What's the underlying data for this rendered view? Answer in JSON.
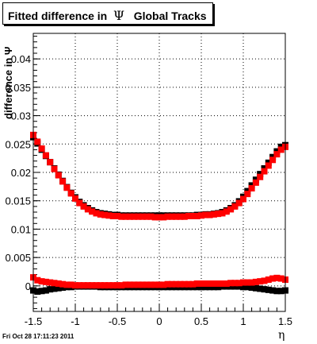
{
  "title": {
    "text_before": "Fitted difference in",
    "symbol": "Ψ",
    "text_after": "Global Tracks"
  },
  "footer": "Fri Oct 28 17:11:23 2011",
  "chart_data": {
    "type": "scatter",
    "title": "Fitted difference in Ψ Global Tracks",
    "xlabel": "η",
    "ylabel": "difference in Ψ",
    "xlim": [
      -1.5,
      1.5
    ],
    "ylim": [
      -0.0045,
      0.0445
    ],
    "x_ticks": [
      "-1.5",
      "-1",
      "-0.5",
      "0",
      "0.5",
      "1",
      "1.5"
    ],
    "y_ticks": [
      "0",
      "0.005",
      "0.01",
      "0.015",
      "0.02",
      "0.025",
      "0.03",
      "0.035",
      "0.04"
    ],
    "grid": true,
    "colors": {
      "series_black": "#000000",
      "series_red": "#ff0000",
      "grid": "#000000"
    },
    "series": [
      {
        "color": "#000000",
        "x": [
          -1.5,
          -1.45,
          -1.4,
          -1.35,
          -1.3,
          -1.25,
          -1.2,
          -1.15,
          -1.1,
          -1.05,
          -1.0,
          -0.95,
          -0.9,
          -0.85,
          -0.8,
          -0.75,
          -0.7,
          -0.65,
          -0.6,
          -0.55,
          -0.5,
          -0.45,
          -0.4,
          -0.35,
          -0.3,
          -0.25,
          -0.2,
          -0.15,
          -0.1,
          -0.05,
          0.0,
          0.05,
          0.1,
          0.15,
          0.2,
          0.25,
          0.3,
          0.35,
          0.4,
          0.45,
          0.5,
          0.55,
          0.6,
          0.65,
          0.7,
          0.75,
          0.8,
          0.85,
          0.9,
          0.95,
          1.0,
          1.05,
          1.1,
          1.15,
          1.2,
          1.25,
          1.3,
          1.35,
          1.4,
          1.45,
          1.5
        ],
        "y": [
          0.0262,
          0.0251,
          0.024,
          0.0229,
          0.0218,
          0.0207,
          0.0196,
          0.0185,
          0.0174,
          0.0164,
          0.0156,
          0.0148,
          0.0142,
          0.0137,
          0.0133,
          0.013,
          0.0128,
          0.0127,
          0.0126,
          0.0125,
          0.0125,
          0.0124,
          0.0124,
          0.0124,
          0.0124,
          0.0124,
          0.0124,
          0.0124,
          0.0124,
          0.0124,
          0.0124,
          0.0124,
          0.0124,
          0.0124,
          0.0124,
          0.0124,
          0.0124,
          0.0124,
          0.0124,
          0.0125,
          0.0125,
          0.0126,
          0.0126,
          0.0127,
          0.0128,
          0.013,
          0.0133,
          0.0137,
          0.0142,
          0.0149,
          0.0157,
          0.0167,
          0.0177,
          0.0187,
          0.0197,
          0.0207,
          0.0217,
          0.0227,
          0.0237,
          0.0245,
          0.0248
        ]
      },
      {
        "color": "#ff0000",
        "x": [
          -1.5,
          -1.45,
          -1.4,
          -1.35,
          -1.3,
          -1.25,
          -1.2,
          -1.15,
          -1.1,
          -1.05,
          -1.0,
          -0.95,
          -0.9,
          -0.85,
          -0.8,
          -0.75,
          -0.7,
          -0.65,
          -0.6,
          -0.55,
          -0.5,
          -0.45,
          -0.4,
          -0.35,
          -0.3,
          -0.25,
          -0.2,
          -0.15,
          -0.1,
          -0.05,
          0.0,
          0.05,
          0.1,
          0.15,
          0.2,
          0.25,
          0.3,
          0.35,
          0.4,
          0.45,
          0.5,
          0.55,
          0.6,
          0.65,
          0.7,
          0.75,
          0.8,
          0.85,
          0.9,
          0.95,
          1.0,
          1.05,
          1.1,
          1.15,
          1.2,
          1.25,
          1.3,
          1.35,
          1.4,
          1.45,
          1.5
        ],
        "y": [
          0.0266,
          0.0254,
          0.0242,
          0.023,
          0.0218,
          0.0206,
          0.0195,
          0.0184,
          0.0173,
          0.0163,
          0.0154,
          0.0146,
          0.014,
          0.0135,
          0.0131,
          0.0128,
          0.0126,
          0.0125,
          0.0124,
          0.0123,
          0.0123,
          0.0122,
          0.0122,
          0.0122,
          0.0122,
          0.0122,
          0.0122,
          0.0122,
          0.0122,
          0.0121,
          0.0121,
          0.0121,
          0.0122,
          0.0122,
          0.0122,
          0.0122,
          0.0122,
          0.0123,
          0.0123,
          0.0123,
          0.0124,
          0.0125,
          0.0125,
          0.0126,
          0.0127,
          0.0128,
          0.0131,
          0.0135,
          0.014,
          0.0146,
          0.0153,
          0.0162,
          0.0172,
          0.0182,
          0.0192,
          0.0202,
          0.0212,
          0.0222,
          0.0232,
          0.024,
          0.0245
        ]
      },
      {
        "color": "#000000",
        "x": [
          -1.5,
          -1.45,
          -1.4,
          -1.35,
          -1.3,
          -1.25,
          -1.2,
          -1.15,
          -1.1,
          -1.05,
          -1.0,
          -0.95,
          -0.9,
          -0.85,
          -0.8,
          -0.75,
          -0.7,
          -0.65,
          -0.6,
          -0.55,
          -0.5,
          -0.45,
          -0.4,
          -0.35,
          -0.3,
          -0.25,
          -0.2,
          -0.15,
          -0.1,
          -0.05,
          0.0,
          0.05,
          0.1,
          0.15,
          0.2,
          0.25,
          0.3,
          0.35,
          0.4,
          0.45,
          0.5,
          0.55,
          0.6,
          0.65,
          0.7,
          0.75,
          0.8,
          0.85,
          0.9,
          0.95,
          1.0,
          1.05,
          1.1,
          1.15,
          1.2,
          1.25,
          1.3,
          1.35,
          1.4,
          1.45,
          1.5
        ],
        "y": [
          -0.0008,
          -0.001,
          -0.0009,
          -0.0008,
          -0.0006,
          -0.0005,
          -0.0004,
          -0.0003,
          -0.0002,
          -0.0002,
          -0.0001,
          -0.0001,
          -0.0001,
          -0.0001,
          -0.0001,
          -0.0001,
          -0.0002,
          -0.0002,
          -0.0002,
          -0.0002,
          -0.0002,
          -0.0002,
          -0.0002,
          -0.0002,
          -0.0002,
          -0.0002,
          -0.0002,
          -0.0002,
          -0.0002,
          -0.0002,
          -0.0002,
          -0.0002,
          -0.0002,
          -0.0002,
          -0.0002,
          -0.0002,
          -0.0002,
          -0.0002,
          -0.0002,
          -0.0002,
          -0.0002,
          -0.0002,
          -0.0002,
          -0.0002,
          -0.0002,
          -0.0001,
          -0.0001,
          -0.0001,
          -0.0001,
          -0.0001,
          -0.0002,
          -0.0002,
          -0.0003,
          -0.0004,
          -0.0005,
          -0.0006,
          -0.0007,
          -0.0008,
          -0.0009,
          -0.0009,
          -0.0008
        ]
      },
      {
        "color": "#ff0000",
        "x": [
          -1.5,
          -1.45,
          -1.4,
          -1.35,
          -1.3,
          -1.25,
          -1.2,
          -1.15,
          -1.1,
          -1.05,
          -1.0,
          -0.95,
          -0.9,
          -0.85,
          -0.8,
          -0.75,
          -0.7,
          -0.65,
          -0.6,
          -0.55,
          -0.5,
          -0.45,
          -0.4,
          -0.35,
          -0.3,
          -0.25,
          -0.2,
          -0.15,
          -0.1,
          -0.05,
          0.0,
          0.05,
          0.1,
          0.15,
          0.2,
          0.25,
          0.3,
          0.35,
          0.4,
          0.45,
          0.5,
          0.55,
          0.6,
          0.65,
          0.7,
          0.75,
          0.8,
          0.85,
          0.9,
          0.95,
          1.0,
          1.05,
          1.1,
          1.15,
          1.2,
          1.25,
          1.3,
          1.35,
          1.4,
          1.45,
          1.5
        ],
        "y": [
          0.0015,
          0.001,
          0.0008,
          0.0007,
          0.0006,
          0.0005,
          0.0004,
          0.0003,
          0.0002,
          0.0002,
          0.0001,
          0.0001,
          0.0001,
          0.0001,
          0.0001,
          0.0001,
          0.0001,
          0.0001,
          0.0001,
          0.0001,
          0.0001,
          0.0001,
          0.0002,
          0.0002,
          0.0002,
          0.0002,
          0.0002,
          0.0002,
          0.0002,
          0.0002,
          0.0002,
          0.0002,
          0.0003,
          0.0003,
          0.0003,
          0.0003,
          0.0003,
          0.0003,
          0.0003,
          0.0004,
          0.0004,
          0.0004,
          0.0004,
          0.0004,
          0.0004,
          0.0004,
          0.0004,
          0.0005,
          0.0005,
          0.0005,
          0.0006,
          0.0006,
          0.0006,
          0.0007,
          0.0008,
          0.0009,
          0.0011,
          0.0013,
          0.0014,
          0.0013,
          0.0011
        ]
      }
    ]
  }
}
